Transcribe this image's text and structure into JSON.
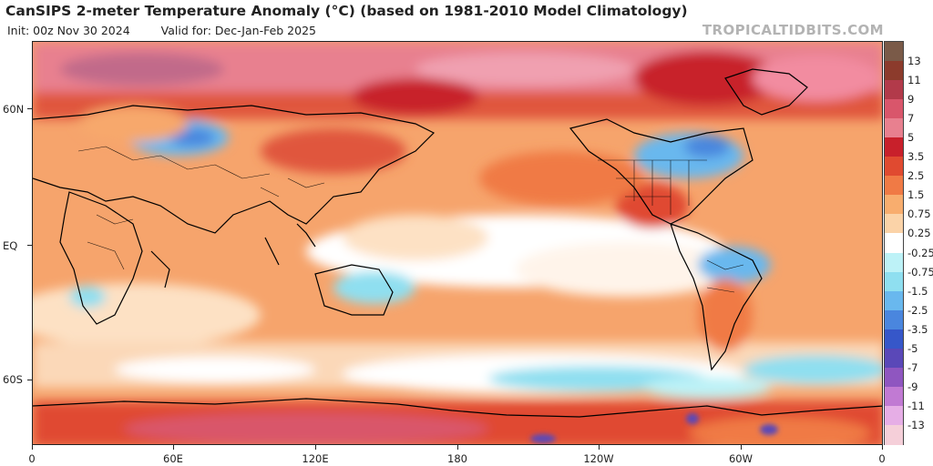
{
  "header": {
    "title": "CanSIPS 2-meter Temperature Anomaly (°C) (based on 1981-2010 Model Climatology)",
    "init": "Init: 00z Nov 30 2024",
    "valid": "Valid for: Dec-Jan-Feb 2025",
    "credit": "TROPICALTIDBITS.COM"
  },
  "axes": {
    "lat_labels": [
      "60N",
      "EQ",
      "60S"
    ],
    "lon_labels": [
      "0",
      "60E",
      "120E",
      "180",
      "120W",
      "60W",
      "0"
    ]
  },
  "colorbar": {
    "labels": [
      "13",
      "11",
      "9",
      "7",
      "5",
      "3.5",
      "2.5",
      "1.5",
      "0.75",
      "0.25",
      "-0.25",
      "-0.75",
      "-1.5",
      "-2.5",
      "-3.5",
      "-5",
      "-7",
      "-9",
      "-11",
      "-13"
    ],
    "colors": [
      "#7a5a48",
      "#8c3b2c",
      "#b23a4a",
      "#d9566b",
      "#e8808f",
      "#c8202b",
      "#e04a30",
      "#f07a45",
      "#f8ad6e",
      "#fbd3a8",
      "#ffffff",
      "#bdf2f7",
      "#8fdff0",
      "#69b8ee",
      "#4a86de",
      "#3657c9",
      "#5a48b8",
      "#8f56c0",
      "#c17ad3",
      "#e6aee6",
      "#f5cfd9"
    ]
  },
  "map": {
    "projection": "equirectangular, centered on 180",
    "land_color": "#000000",
    "ocean_background_color": "#f7a86c"
  }
}
